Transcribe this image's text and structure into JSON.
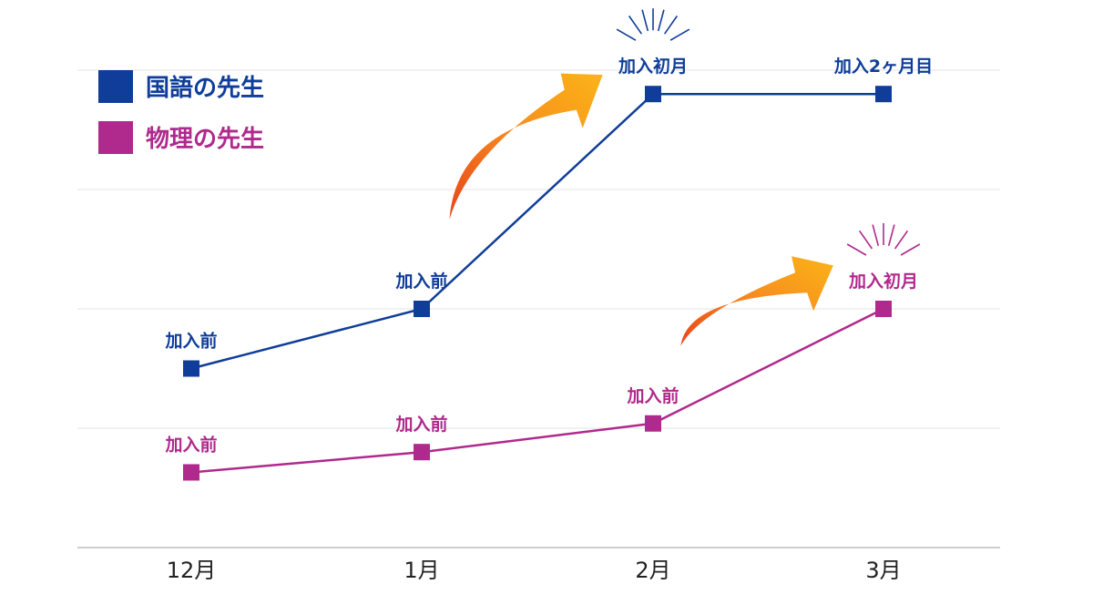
{
  "chart_data": {
    "type": "line",
    "categories": [
      "12月",
      "1月",
      "2月",
      "3月"
    ],
    "ylim": [
      0,
      4
    ],
    "grid": true,
    "legend_position": "top-left",
    "series": [
      {
        "name": "国語の先生",
        "color": "#0f3d99",
        "points": [
          {
            "category": "12月",
            "value": 1.5,
            "label": "加入前"
          },
          {
            "category": "1月",
            "value": 2.0,
            "label": "加入前"
          },
          {
            "category": "2月",
            "value": 3.8,
            "label": "加入初月"
          },
          {
            "category": "3月",
            "value": 3.8,
            "label": "加入2ヶ月目"
          }
        ]
      },
      {
        "name": "物理の先生",
        "color": "#b0298c",
        "points": [
          {
            "category": "12月",
            "value": 0.63,
            "label": "加入前"
          },
          {
            "category": "1月",
            "value": 0.8,
            "label": "加入前"
          },
          {
            "category": "2月",
            "value": 1.04,
            "label": "加入前"
          },
          {
            "category": "3月",
            "value": 2.0,
            "label": "加入初月"
          }
        ]
      }
    ],
    "annotations": [
      {
        "type": "arrow",
        "color": "orange-gradient",
        "between": [
          "1月",
          "2月"
        ],
        "series": "国語の先生"
      },
      {
        "type": "arrow",
        "color": "orange-gradient",
        "between": [
          "2月",
          "3月"
        ],
        "series": "物理の先生"
      },
      {
        "type": "burst",
        "series": "国語の先生",
        "category": "2月"
      },
      {
        "type": "burst",
        "series": "物理の先生",
        "category": "3月"
      }
    ]
  }
}
